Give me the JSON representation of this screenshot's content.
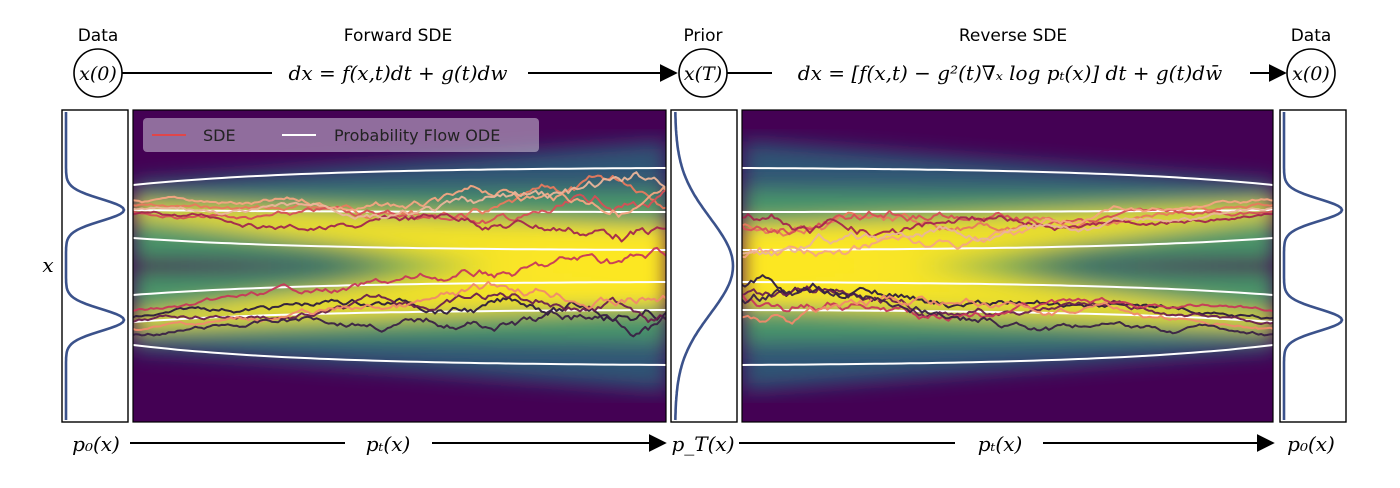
{
  "labels": {
    "data_left": "Data",
    "forward_sde": "Forward SDE",
    "prior": "Prior",
    "reverse_sde": "Reverse SDE",
    "data_right": "Data",
    "y_axis": "x"
  },
  "nodes": {
    "x0_left": "x(0)",
    "xT": "x(T)",
    "x0_right": "x(0)"
  },
  "equations": {
    "forward": "dx = f(x,t)dt + g(t)dw",
    "reverse": "dx = [f(x,t) − g²(t)∇ₓ log pₜ(x)] dt + g(t)dw̄"
  },
  "bottom_labels": {
    "p0_left": "p₀(x)",
    "pt_forward": "pₜ(x)",
    "pT": "p_T(x)",
    "pt_reverse": "pₜ(x)",
    "p0_right": "p₀(x)"
  },
  "legend": {
    "sde": "SDE",
    "ode": "Probability Flow ODE"
  },
  "colors": {
    "sde_legend": "#e0464a",
    "ode_legend": "#ffffff",
    "density_low": "#440154",
    "density_mid": "#21918c",
    "density_high": "#fde725"
  }
}
